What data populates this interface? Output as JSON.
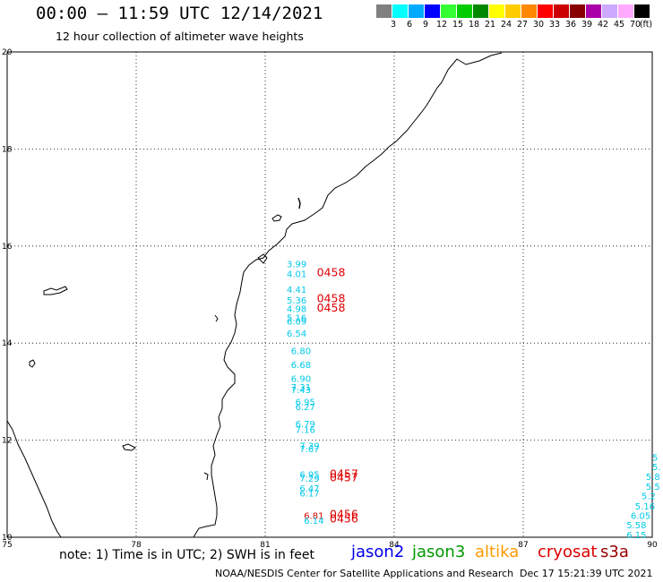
{
  "title": "00:00 – 11:59 UTC 12/14/2021",
  "subtitle": "12 hour collection of altimeter wave heights",
  "legend": {
    "unit": "(ft)",
    "items": [
      {
        "color": "#808080",
        "label": "3"
      },
      {
        "color": "#00ffff",
        "label": "6"
      },
      {
        "color": "#00aaff",
        "label": "9"
      },
      {
        "color": "#0000ff",
        "label": "12"
      },
      {
        "color": "#33ff33",
        "label": "15"
      },
      {
        "color": "#00cc00",
        "label": "18"
      },
      {
        "color": "#008800",
        "label": "21"
      },
      {
        "color": "#ffff00",
        "label": "24"
      },
      {
        "color": "#ffcc00",
        "label": "27"
      },
      {
        "color": "#ff8800",
        "label": "30"
      },
      {
        "color": "#ff0000",
        "label": "33"
      },
      {
        "color": "#cc0000",
        "label": "36"
      },
      {
        "color": "#880000",
        "label": "39"
      },
      {
        "color": "#aa00aa",
        "label": "42"
      },
      {
        "color": "#ccaaff",
        "label": "45"
      },
      {
        "color": "#ffaaff",
        "label": "70"
      },
      {
        "color": "#000000",
        "label": ""
      }
    ]
  },
  "axes": {
    "lon": [
      75,
      78,
      81,
      84,
      87,
      90
    ],
    "lat": [
      10,
      12,
      14,
      16,
      18,
      20
    ]
  },
  "map_style": {
    "jason2_cyan": "#00c8e8",
    "cryosat_red": "#dd0000"
  },
  "observations": [
    {
      "lat": 15.56,
      "lon": 81.5,
      "text": "3.99",
      "color": "#00c8e8"
    },
    {
      "lat": 15.36,
      "lon": 81.5,
      "text": "4.01",
      "color": "#00c8e8"
    },
    {
      "lat": 15.38,
      "lon": 82.2,
      "text": "0458",
      "color": "#dd0000"
    },
    {
      "lat": 15.04,
      "lon": 81.5,
      "text": "4.41",
      "color": "#00c8e8"
    },
    {
      "lat": 14.82,
      "lon": 81.5,
      "text": "5.36",
      "color": "#00c8e8"
    },
    {
      "lat": 14.84,
      "lon": 82.2,
      "text": "0458",
      "color": "#dd0000"
    },
    {
      "lat": 14.64,
      "lon": 81.5,
      "text": "4.98",
      "color": "#00c8e8"
    },
    {
      "lat": 14.65,
      "lon": 82.2,
      "text": "0458",
      "color": "#dd0000"
    },
    {
      "lat": 14.46,
      "lon": 81.5,
      "text": "5.16",
      "color": "#00c8e8"
    },
    {
      "lat": 14.38,
      "lon": 81.5,
      "text": "6.09",
      "color": "#00c8e8"
    },
    {
      "lat": 14.13,
      "lon": 81.5,
      "text": "6.54",
      "color": "#00c8e8"
    },
    {
      "lat": 13.77,
      "lon": 81.6,
      "text": "6.80",
      "color": "#00c8e8"
    },
    {
      "lat": 13.49,
      "lon": 81.6,
      "text": "6.68",
      "color": "#00c8e8"
    },
    {
      "lat": 13.2,
      "lon": 81.6,
      "text": "6.90",
      "color": "#00c8e8"
    },
    {
      "lat": 13.03,
      "lon": 81.6,
      "text": "7.31",
      "color": "#00c8e8"
    },
    {
      "lat": 12.97,
      "lon": 81.6,
      "text": "7.43",
      "color": "#00c8e8"
    },
    {
      "lat": 12.72,
      "lon": 81.7,
      "text": "6.95",
      "color": "#00c8e8"
    },
    {
      "lat": 12.62,
      "lon": 81.7,
      "text": "6.27",
      "color": "#00c8e8"
    },
    {
      "lat": 12.27,
      "lon": 81.7,
      "text": "6.79",
      "color": "#00c8e8"
    },
    {
      "lat": 12.15,
      "lon": 81.7,
      "text": "7.16",
      "color": "#00c8e8"
    },
    {
      "lat": 11.82,
      "lon": 81.8,
      "text": "7.39",
      "color": "#00c8e8"
    },
    {
      "lat": 11.75,
      "lon": 81.8,
      "text": "7.67",
      "color": "#00c8e8"
    },
    {
      "lat": 11.23,
      "lon": 81.8,
      "text": "6.95",
      "color": "#00c8e8"
    },
    {
      "lat": 11.23,
      "lon": 82.5,
      "text": "0457",
      "color": "#dd0000"
    },
    {
      "lat": 11.14,
      "lon": 81.8,
      "text": "7.29",
      "color": "#00c8e8"
    },
    {
      "lat": 11.15,
      "lon": 82.5,
      "text": "0457",
      "color": "#dd0000"
    },
    {
      "lat": 10.94,
      "lon": 81.8,
      "text": "6.47",
      "color": "#00c8e8"
    },
    {
      "lat": 10.84,
      "lon": 81.8,
      "text": "6.17",
      "color": "#00c8e8"
    },
    {
      "lat": 10.38,
      "lon": 81.9,
      "text": "6.81",
      "color": "#dd0000"
    },
    {
      "lat": 10.4,
      "lon": 82.5,
      "text": "0456",
      "color": "#dd0000"
    },
    {
      "lat": 10.28,
      "lon": 81.9,
      "text": "6.14",
      "color": "#00c8e8"
    },
    {
      "lat": 10.3,
      "lon": 82.5,
      "text": "0456",
      "color": "#dd0000"
    },
    {
      "lat": 11.58,
      "lon": 90.0,
      "text": "5",
      "color": "#00c8e8"
    },
    {
      "lat": 11.38,
      "lon": 90.0,
      "text": "5.",
      "color": "#00c8e8"
    },
    {
      "lat": 11.18,
      "lon": 89.85,
      "text": "5.8",
      "color": "#00c8e8"
    },
    {
      "lat": 10.98,
      "lon": 89.85,
      "text": "5.5",
      "color": "#00c8e8"
    },
    {
      "lat": 10.78,
      "lon": 89.75,
      "text": "5.2",
      "color": "#00c8e8"
    },
    {
      "lat": 10.57,
      "lon": 89.6,
      "text": "5.16",
      "color": "#00c8e8"
    },
    {
      "lat": 10.38,
      "lon": 89.5,
      "text": "6.05",
      "color": "#00c8e8"
    },
    {
      "lat": 10.18,
      "lon": 89.4,
      "text": "5.58",
      "color": "#00c8e8"
    },
    {
      "lat": 9.98,
      "lon": 89.4,
      "text": "6.15",
      "color": "#00c8e8"
    }
  ],
  "footer": {
    "note": "note: 1) Time is in UTC; 2) SWH is in feet",
    "satellites": [
      {
        "name": "jason2",
        "color": "#0000ee"
      },
      {
        "name": "jason3",
        "color": "#009900"
      },
      {
        "name": "altika",
        "color": "#ff9900"
      },
      {
        "name": "cryosat",
        "color": "#dd0000"
      },
      {
        "name": "s3a",
        "color": "#990000"
      }
    ],
    "credit": "NOAA/NESDIS Center for Satellite Applications and Research",
    "date": "Dec 17 15:21:39 UTC 2021"
  }
}
